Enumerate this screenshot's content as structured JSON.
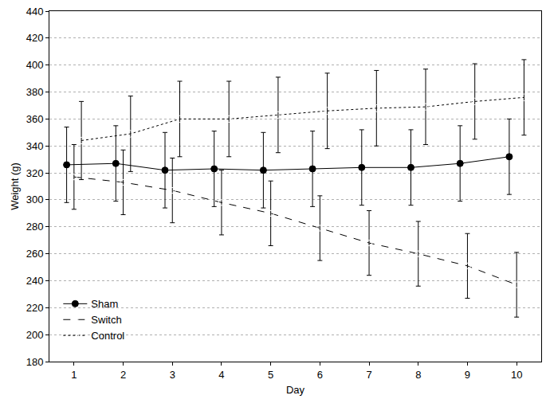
{
  "chart_data": {
    "type": "line",
    "x_label": "Day",
    "y_label": "Weight (g)",
    "xlim": [
      0.5,
      10.5
    ],
    "xticks": [
      1,
      2,
      3,
      4,
      5,
      6,
      7,
      8,
      9,
      10
    ],
    "ylim": [
      180,
      440
    ],
    "yticks": [
      180,
      200,
      220,
      240,
      260,
      280,
      300,
      320,
      340,
      360,
      380,
      400,
      420,
      440
    ],
    "grid": true,
    "legend": "lower left",
    "series": [
      {
        "name": "Sham",
        "color": "#000000",
        "marker": "filled_circle",
        "line_style": "solid",
        "x": [
          0.85,
          1.85,
          2.85,
          3.85,
          4.85,
          5.85,
          6.85,
          7.85,
          8.85,
          9.85
        ],
        "values": [
          326,
          327,
          322,
          323,
          322,
          323,
          324,
          324,
          327,
          332
        ],
        "error": [
          28,
          28,
          28,
          28,
          28,
          28,
          28,
          28,
          28,
          28
        ]
      },
      {
        "name": "Switch",
        "color": "#000000",
        "marker": "open_square",
        "line_style": "dashed",
        "x": [
          1,
          2,
          3,
          4,
          5,
          6,
          7,
          8,
          9,
          10
        ],
        "values": [
          317,
          313,
          307,
          298,
          290,
          279,
          268,
          260,
          251,
          237
        ],
        "error": [
          24,
          24,
          24,
          24,
          24,
          24,
          24,
          24,
          24,
          24
        ]
      },
      {
        "name": "Control",
        "color": "#000000",
        "marker": "open_diamond",
        "line_style": "dotted",
        "x": [
          1.15,
          2.15,
          3.15,
          4.15,
          5.15,
          6.15,
          7.15,
          8.15,
          9.15,
          10.15
        ],
        "values": [
          344,
          349,
          360,
          360,
          363,
          366,
          368,
          369,
          373,
          376
        ],
        "error": [
          29,
          28,
          28,
          28,
          28,
          28,
          28,
          28,
          28,
          28
        ]
      }
    ]
  }
}
